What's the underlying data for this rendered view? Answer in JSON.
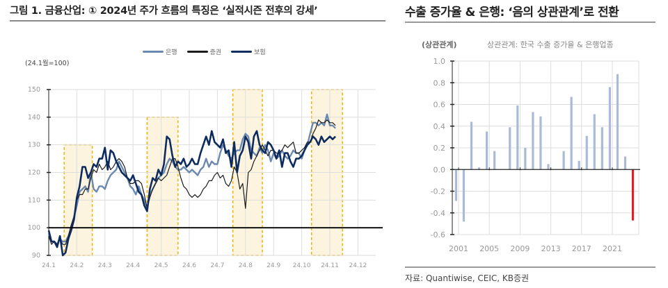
{
  "left_panel": {
    "title": "그림 1. 금융산업: ① 2024년 주가 흐름의 특징은 ‘실적시즌 전후의 강세’",
    "unit_label": "(24.1월=100)",
    "legend": [
      {
        "label": "은행",
        "color": "#6b89b0"
      },
      {
        "label": "증권",
        "color": "#1a1a1a"
      },
      {
        "label": "보험",
        "color": "#0d2b5e"
      }
    ]
  },
  "right_panel": {
    "title": "수출 증가율 & 은행: ‘음의 상관관계’로 전환",
    "unit_label": "(상관관계)",
    "subtitle": "상관관계: 한국 수출 증가율 & 은행업종"
  },
  "footer": {
    "source": "자료: Quantiwise, CEIC, KB증권"
  },
  "colors": {
    "highlight_fill": "#fdf4e0",
    "highlight_border": "#f0b400",
    "bar_positive": "#a9bbd6",
    "bar_latest": "#e8191f",
    "grid": "#dddddd",
    "baseline": "#000000"
  },
  "chart_data": [
    {
      "type": "line",
      "title": "금융산업: 2024년 주가 흐름의 특징은 ‘실적시즌 전후의 강세’",
      "xlabel": "",
      "ylabel": "(24.1월=100)",
      "ylim": [
        90,
        150
      ],
      "yticks": [
        90,
        100,
        110,
        120,
        130,
        140,
        150
      ],
      "categories": [
        "24.1",
        "24.2",
        "24.3",
        "24.4",
        "24.5",
        "24.6",
        "24.7",
        "24.8",
        "24.9",
        "24.10",
        "24.11",
        "24.12"
      ],
      "grid": true,
      "legend_position": "top",
      "reference_line": 100,
      "highlight_regions": [
        {
          "from": 1.55,
          "to": 2.55,
          "top": 130,
          "label": "실적시즌"
        },
        {
          "from": 4.5,
          "to": 5.6,
          "top": 140,
          "label": "실적시즌"
        },
        {
          "from": 7.55,
          "to": 8.6,
          "top": 150,
          "label": "실적시즌"
        },
        {
          "from": 10.35,
          "to": 11.45,
          "top": 150,
          "label": "실적시즌"
        }
      ],
      "series": [
        {
          "name": "은행",
          "color": "#6b89b0",
          "x": [
            1.0,
            1.1,
            1.2,
            1.3,
            1.4,
            1.5,
            1.6,
            1.7,
            1.8,
            1.9,
            2.0,
            2.1,
            2.2,
            2.3,
            2.4,
            2.5,
            2.6,
            2.7,
            2.8,
            2.9,
            3.0,
            3.1,
            3.2,
            3.3,
            3.4,
            3.5,
            3.6,
            3.7,
            3.8,
            3.9,
            4.0,
            4.1,
            4.2,
            4.3,
            4.4,
            4.5,
            4.6,
            4.7,
            4.8,
            4.9,
            5.0,
            5.1,
            5.2,
            5.3,
            5.4,
            5.5,
            5.6,
            5.7,
            5.8,
            5.9,
            6.0,
            6.1,
            6.2,
            6.3,
            6.4,
            6.5,
            6.6,
            6.7,
            6.8,
            6.9,
            7.0,
            7.1,
            7.2,
            7.3,
            7.4,
            7.5,
            7.6,
            7.7,
            7.8,
            7.9,
            8.0,
            8.1,
            8.2,
            8.3,
            8.4,
            8.5,
            8.6,
            8.7,
            8.8,
            8.9,
            9.0,
            9.1,
            9.2,
            9.3,
            9.4,
            9.5,
            9.6,
            9.7,
            9.8,
            9.9,
            10.0,
            10.1,
            10.2,
            10.3,
            10.4,
            10.5,
            10.6,
            10.7,
            10.8,
            10.9,
            11.0,
            11.1,
            11.2
          ],
          "values": [
            98,
            95,
            95,
            94,
            96,
            95,
            95,
            97,
            100,
            104,
            108,
            113,
            114,
            115,
            113,
            120,
            114,
            113,
            115,
            115,
            114,
            117,
            119,
            120,
            121,
            124,
            122,
            120,
            118,
            115,
            114,
            112,
            115,
            112,
            110,
            107,
            112,
            114,
            116,
            118,
            119,
            120,
            123,
            125,
            124,
            122,
            121,
            121,
            122,
            121,
            120,
            121,
            120,
            119,
            121,
            122,
            125,
            122,
            124,
            123,
            123,
            127,
            130,
            128,
            126,
            125,
            127,
            128,
            128,
            132,
            134,
            133,
            128,
            127,
            126,
            129,
            127,
            130,
            128,
            124,
            127,
            125,
            126,
            128,
            126,
            125,
            126,
            128,
            127,
            127,
            125,
            128,
            130,
            134,
            138,
            138,
            137,
            138,
            137,
            141,
            137,
            137,
            136
          ],
          "note": "approximate readings"
        },
        {
          "name": "증권",
          "color": "#1a1a1a",
          "x": [
            1.0,
            1.1,
            1.2,
            1.3,
            1.4,
            1.5,
            1.6,
            1.7,
            1.8,
            1.9,
            2.0,
            2.1,
            2.2,
            2.3,
            2.4,
            2.5,
            2.6,
            2.7,
            2.8,
            2.9,
            3.0,
            3.1,
            3.2,
            3.3,
            3.4,
            3.5,
            3.6,
            3.7,
            3.8,
            3.9,
            4.0,
            4.1,
            4.2,
            4.3,
            4.4,
            4.5,
            4.6,
            4.7,
            4.8,
            4.9,
            5.0,
            5.1,
            5.2,
            5.3,
            5.4,
            5.5,
            5.6,
            5.7,
            5.8,
            5.9,
            6.0,
            6.1,
            6.2,
            6.3,
            6.4,
            6.5,
            6.6,
            6.7,
            6.8,
            6.9,
            7.0,
            7.1,
            7.2,
            7.3,
            7.4,
            7.5,
            7.6,
            7.7,
            7.8,
            7.9,
            8.0,
            8.1,
            8.2,
            8.3,
            8.4,
            8.5,
            8.6,
            8.7,
            8.8,
            8.9,
            9.0,
            9.1,
            9.2,
            9.3,
            9.4,
            9.5,
            9.6,
            9.7,
            9.8,
            9.9,
            10.0,
            10.1,
            10.2,
            10.3,
            10.4,
            10.5,
            10.6,
            10.7,
            10.8,
            10.9,
            11.0,
            11.1,
            11.2
          ],
          "values": [
            97,
            94,
            95,
            94,
            96,
            94,
            94,
            97,
            101,
            104,
            110,
            112,
            112,
            114,
            114,
            118,
            121,
            120,
            123,
            121,
            122,
            124,
            121,
            122,
            124,
            125,
            124,
            122,
            118,
            116,
            116,
            117,
            117,
            116,
            112,
            107,
            111,
            114,
            116,
            118,
            117,
            118,
            119,
            122,
            125,
            125,
            122,
            118,
            115,
            114,
            112,
            111,
            112,
            111,
            112,
            114,
            115,
            117,
            117,
            119,
            120,
            118,
            119,
            116,
            115,
            117,
            122,
            120,
            114,
            116,
            107,
            120,
            121,
            124,
            126,
            128,
            130,
            128,
            126,
            128,
            128,
            127,
            127,
            128,
            130,
            129,
            130,
            131,
            127,
            127,
            128,
            129,
            131,
            131,
            134,
            136,
            139,
            138,
            138,
            139,
            138,
            138,
            137
          ],
          "note": "approximate readings"
        },
        {
          "name": "보험",
          "color": "#0d2b5e",
          "x": [
            1.0,
            1.1,
            1.2,
            1.3,
            1.4,
            1.5,
            1.6,
            1.7,
            1.8,
            1.9,
            2.0,
            2.1,
            2.2,
            2.3,
            2.4,
            2.5,
            2.6,
            2.7,
            2.8,
            2.9,
            3.0,
            3.1,
            3.2,
            3.3,
            3.4,
            3.5,
            3.6,
            3.7,
            3.8,
            3.9,
            4.0,
            4.1,
            4.2,
            4.3,
            4.4,
            4.5,
            4.6,
            4.7,
            4.8,
            4.9,
            5.0,
            5.1,
            5.2,
            5.3,
            5.4,
            5.5,
            5.6,
            5.7,
            5.8,
            5.9,
            6.0,
            6.1,
            6.2,
            6.3,
            6.4,
            6.5,
            6.6,
            6.7,
            6.8,
            6.9,
            7.0,
            7.1,
            7.2,
            7.3,
            7.4,
            7.5,
            7.6,
            7.7,
            7.8,
            7.9,
            8.0,
            8.1,
            8.2,
            8.3,
            8.4,
            8.5,
            8.6,
            8.7,
            8.8,
            8.9,
            9.0,
            9.1,
            9.2,
            9.3,
            9.4,
            9.5,
            9.6,
            9.7,
            9.8,
            9.9,
            10.0,
            10.1,
            10.2,
            10.3,
            10.4,
            10.5,
            10.6,
            10.7,
            10.8,
            10.9,
            11.0,
            11.1,
            11.2
          ],
          "values": [
            99,
            95,
            95,
            93,
            97,
            90,
            91,
            96,
            99,
            103,
            111,
            115,
            122,
            122,
            118,
            120,
            123,
            122,
            125,
            125,
            129,
            121,
            128,
            127,
            124,
            122,
            120,
            119,
            118,
            117,
            119,
            116,
            113,
            112,
            108,
            106,
            114,
            118,
            117,
            121,
            119,
            123,
            133,
            132,
            126,
            122,
            124,
            123,
            125,
            122,
            123,
            125,
            123,
            123,
            127,
            130,
            133,
            130,
            135,
            131,
            130,
            129,
            132,
            127,
            128,
            122,
            131,
            120,
            126,
            128,
            133,
            131,
            125,
            133,
            135,
            130,
            128,
            127,
            131,
            130,
            128,
            125,
            128,
            122,
            127,
            127,
            124,
            122,
            125,
            125,
            126,
            128,
            130,
            131,
            133,
            132,
            130,
            133,
            131,
            132,
            133,
            132,
            133
          ],
          "note": "approximate readings"
        }
      ]
    },
    {
      "type": "bar",
      "title": "상관관계: 한국 수출 증가율 & 은행업종",
      "xlabel": "",
      "ylabel": "(상관관계)",
      "ylim": [
        -0.6,
        1.0
      ],
      "yticks": [
        -0.6,
        -0.4,
        -0.2,
        0.0,
        0.2,
        0.4,
        0.6,
        0.8,
        1.0
      ],
      "xticks": [
        "2001",
        "2005",
        "2009",
        "2013",
        "2017",
        "2021"
      ],
      "grid": true,
      "categories": [
        "2001",
        "2002",
        "2003",
        "2004",
        "2005",
        "2006",
        "2007",
        "2008",
        "2009",
        "2010",
        "2011",
        "2012",
        "2013",
        "2014",
        "2015",
        "2016",
        "2017",
        "2018",
        "2019",
        "2020",
        "2021",
        "2022",
        "2023",
        "2024"
      ],
      "values": [
        -0.29,
        -0.48,
        0.44,
        0.02,
        0.35,
        0.17,
        0.0,
        0.39,
        0.59,
        0.2,
        0.53,
        0.49,
        0.05,
        0.0,
        0.17,
        0.67,
        0.08,
        0.31,
        0.51,
        0.39,
        0.76,
        0.88,
        0.12,
        -0.47
      ],
      "highlight": {
        "category": "2024",
        "color": "#e8191f"
      }
    }
  ]
}
